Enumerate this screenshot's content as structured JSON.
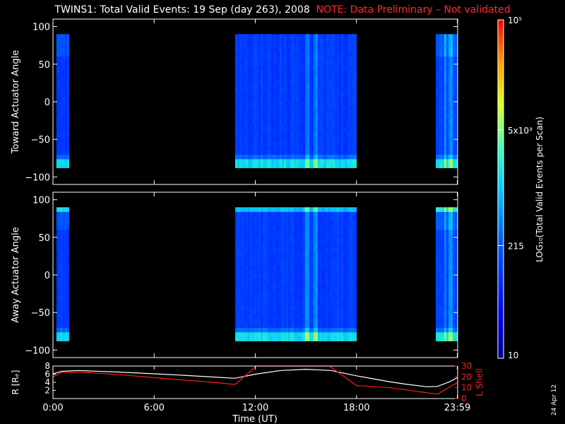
{
  "title": {
    "main": "TWINS1: Total Valid Events: 19 Sep (day 263), 2008",
    "note": "NOTE: Data Preliminary – Not validated"
  },
  "stamp": "24 Apr 12",
  "colors": {
    "background": "#000000",
    "axes": "#ffffff",
    "note": "#ff2a2a",
    "lshell": "#ff1a1a",
    "rearth": "#ffffff"
  },
  "chart_data": [
    {
      "type": "heatmap",
      "panel": "toward",
      "ylabel": "Toward Actuator Angle",
      "ylim": [
        -110,
        110
      ],
      "yticks": [
        100,
        50,
        0,
        -50,
        -100
      ],
      "xlim": [
        0,
        24
      ],
      "angle_range": [
        -88,
        90
      ],
      "data_intervals_hours": [
        [
          0.2,
          0.95
        ],
        [
          10.8,
          18.0
        ],
        [
          22.7,
          24.0
        ]
      ],
      "bright_stripes_hours": [
        15.0,
        15.5,
        23.2,
        23.5
      ],
      "base_level_log": 2.05
    },
    {
      "type": "heatmap",
      "panel": "away",
      "ylabel": "Away Actuator Angle",
      "ylim": [
        -110,
        110
      ],
      "yticks": [
        100,
        50,
        0,
        -50,
        -100
      ],
      "xlim": [
        0,
        24
      ],
      "angle_range": [
        -88,
        90
      ],
      "data_intervals_hours": [
        [
          0.2,
          0.95
        ],
        [
          10.8,
          18.0
        ],
        [
          22.7,
          24.0
        ]
      ],
      "bright_stripes_hours": [
        15.0,
        15.5,
        23.2,
        23.5
      ],
      "base_level_log": 2.05
    },
    {
      "type": "line",
      "panel": "orbit",
      "xlabel": "Time (UT)",
      "xticks": [
        "0:00",
        "6:00",
        "12:00",
        "18:00",
        "23:59"
      ],
      "xtick_hours": [
        0,
        6,
        12,
        18,
        23.98
      ],
      "xlim": [
        0,
        24
      ],
      "left_axis": {
        "label": "R [Rₑ]",
        "ticks": [
          8,
          6,
          4,
          2
        ],
        "ylim": [
          0,
          8
        ]
      },
      "right_axis": {
        "label": "L Shell",
        "ticks": [
          30,
          20,
          10,
          0
        ],
        "ylim": [
          0,
          30
        ]
      },
      "series": [
        {
          "axis": "left",
          "x": [
            0,
            0.5,
            1.5,
            4,
            7,
            9.5,
            10.8,
            12,
            13.5,
            15,
            16.5,
            18,
            20,
            21,
            22.2,
            22.8,
            23.5,
            24
          ],
          "y": [
            6.1,
            6.7,
            6.9,
            6.5,
            5.9,
            5.3,
            5.0,
            6.0,
            6.9,
            7.2,
            6.9,
            5.6,
            4.1,
            3.5,
            2.9,
            3.0,
            4.1,
            5.2
          ]
        },
        {
          "axis": "right",
          "x": [
            0,
            0.5,
            1.5,
            4,
            7,
            9.5,
            10.8,
            12.05,
            16.4,
            18,
            20,
            22.8,
            24
          ],
          "y": [
            20,
            24,
            24.5,
            22,
            18,
            15,
            13,
            30,
            30,
            12,
            10,
            4,
            15
          ]
        }
      ]
    },
    {
      "type": "heatmap",
      "panel": "colorbar",
      "label": "LOG₁₀(Total Valid Events per Scan)",
      "tick_labels": [
        "10",
        "215",
        "5x10³",
        "10⁵"
      ],
      "tick_values": [
        10,
        215,
        5000,
        100000
      ],
      "range_log": [
        1,
        5
      ]
    }
  ]
}
